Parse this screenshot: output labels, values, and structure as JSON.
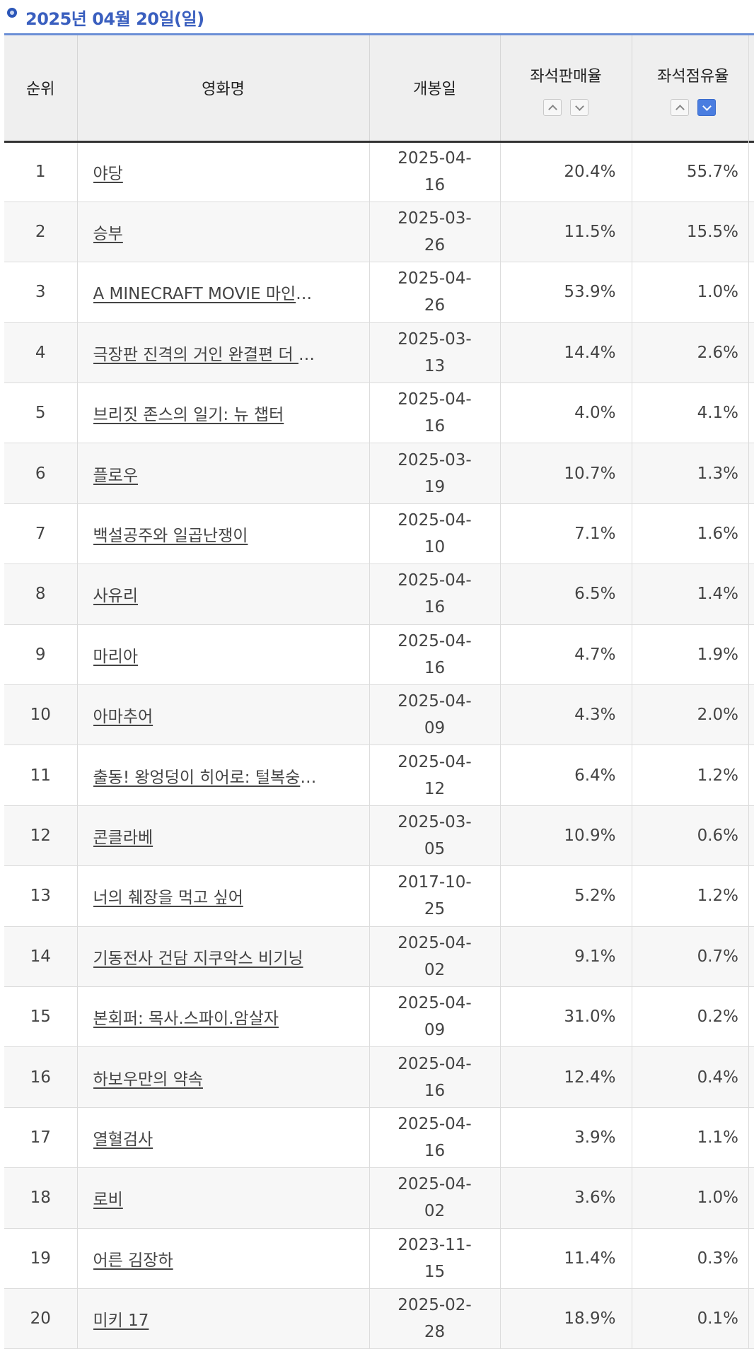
{
  "header": {
    "title": "2025년 04월 20일(일)",
    "icon": "circle-bullet-icon",
    "accent": "#3a5fbf"
  },
  "table": {
    "columns": {
      "rank": "순위",
      "title": "영화명",
      "release": "개봉일",
      "sales_rate": "좌석판매율",
      "share_rate": "좌석점유율"
    },
    "sort": {
      "share_rate_active": "desc"
    },
    "rows": [
      {
        "rank": "1",
        "title": "야당",
        "release": "2025-04-16",
        "sales": "20.4%",
        "share": "55.7%"
      },
      {
        "rank": "2",
        "title": "승부",
        "release": "2025-03-26",
        "sales": "11.5%",
        "share": "15.5%"
      },
      {
        "rank": "3",
        "title": "A MINECRAFT MOVIE 마인크…",
        "release": "2025-04-26",
        "sales": "53.9%",
        "share": "1.0%"
      },
      {
        "rank": "4",
        "title": "극장판 진격의 거인 완결편 더 라스…",
        "release": "2025-03-13",
        "sales": "14.4%",
        "share": "2.6%"
      },
      {
        "rank": "5",
        "title": "브리짓 존스의 일기: 뉴 챕터",
        "release": "2025-04-16",
        "sales": "4.0%",
        "share": "4.1%"
      },
      {
        "rank": "6",
        "title": "플로우",
        "release": "2025-03-19",
        "sales": "10.7%",
        "share": "1.3%"
      },
      {
        "rank": "7",
        "title": "백설공주와 일곱난쟁이",
        "release": "2025-04-10",
        "sales": "7.1%",
        "share": "1.6%"
      },
      {
        "rank": "8",
        "title": "사유리",
        "release": "2025-04-16",
        "sales": "6.5%",
        "share": "1.4%"
      },
      {
        "rank": "9",
        "title": "마리아",
        "release": "2025-04-16",
        "sales": "4.7%",
        "share": "1.9%"
      },
      {
        "rank": "10",
        "title": "아마추어",
        "release": "2025-04-09",
        "sales": "4.3%",
        "share": "2.0%"
      },
      {
        "rank": "11",
        "title": "출동! 왕엉덩이 히어로: 털복숭이 꼬…",
        "release": "2025-04-12",
        "sales": "6.4%",
        "share": "1.2%"
      },
      {
        "rank": "12",
        "title": "콘클라베",
        "release": "2025-03-05",
        "sales": "10.9%",
        "share": "0.6%"
      },
      {
        "rank": "13",
        "title": "너의 췌장을 먹고 싶어",
        "release": "2017-10-25",
        "sales": "5.2%",
        "share": "1.2%"
      },
      {
        "rank": "14",
        "title": "기동전사 건담 지쿠악스 비기닝",
        "release": "2025-04-02",
        "sales": "9.1%",
        "share": "0.7%"
      },
      {
        "rank": "15",
        "title": "본회퍼: 목사.스파이.암살자",
        "release": "2025-04-09",
        "sales": "31.0%",
        "share": "0.2%"
      },
      {
        "rank": "16",
        "title": "하보우만의 약속",
        "release": "2025-04-16",
        "sales": "12.4%",
        "share": "0.4%"
      },
      {
        "rank": "17",
        "title": "열혈검사",
        "release": "2025-04-16",
        "sales": "3.9%",
        "share": "1.1%"
      },
      {
        "rank": "18",
        "title": "로비",
        "release": "2025-04-02",
        "sales": "3.6%",
        "share": "1.0%"
      },
      {
        "rank": "19",
        "title": "어른 김장하",
        "release": "2023-11-15",
        "sales": "11.4%",
        "share": "0.3%"
      },
      {
        "rank": "20",
        "title": "미키 17",
        "release": "2025-02-28",
        "sales": "18.9%",
        "share": "0.1%"
      }
    ]
  }
}
